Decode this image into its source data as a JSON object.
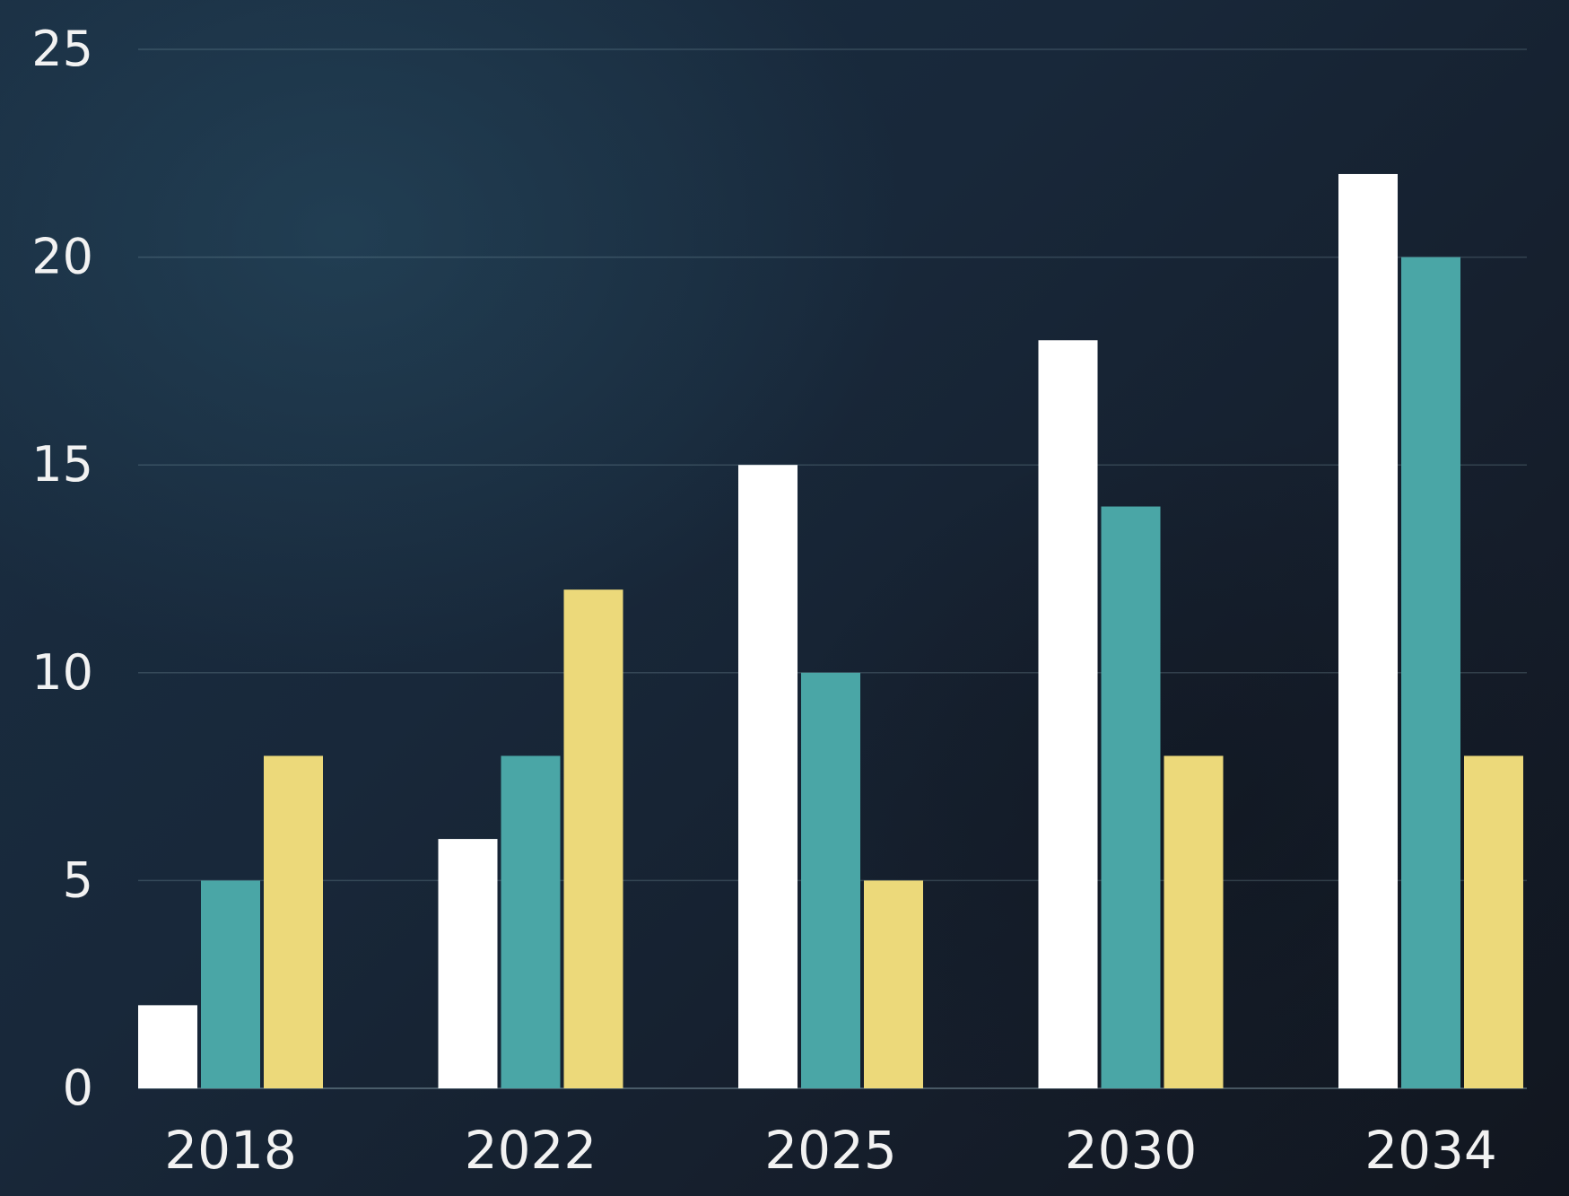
{
  "chart_data": {
    "type": "bar",
    "categories": [
      "2018",
      "2022",
      "2025",
      "2030",
      "2034"
    ],
    "series": [
      {
        "values": [
          2,
          6,
          15,
          18,
          22
        ],
        "color": "#ffffff"
      },
      {
        "values": [
          5,
          8,
          10,
          14,
          20
        ],
        "color": "#4aa6a6"
      },
      {
        "values": [
          8,
          12,
          5,
          8,
          8
        ],
        "color": "#ecd97a"
      }
    ],
    "ylim": [
      0,
      25
    ],
    "yticks": [
      "0",
      "5",
      "10",
      "15",
      "20",
      "25"
    ],
    "grid": true,
    "legend": "none",
    "title": "",
    "xlabel": "",
    "ylabel": ""
  }
}
